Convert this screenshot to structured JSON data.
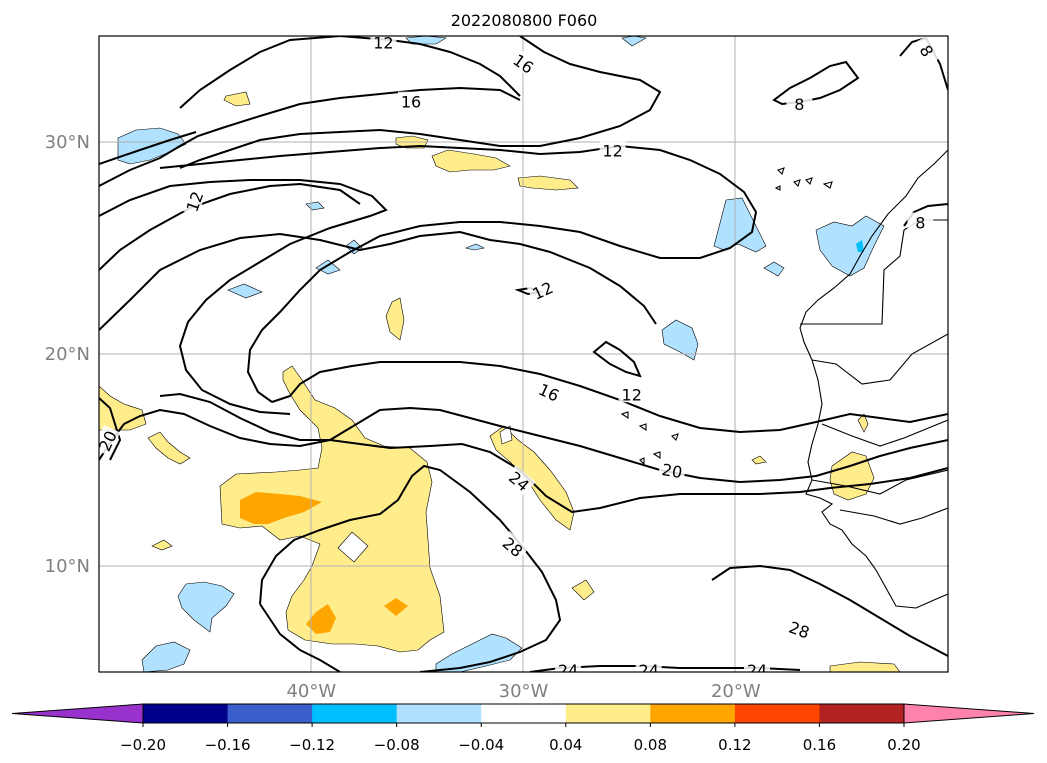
{
  "title": "2022080800 F060",
  "axes": {
    "lat_ticks": [
      {
        "lat": 30,
        "label": "30°N"
      },
      {
        "lat": 20,
        "label": "20°N"
      },
      {
        "lat": 10,
        "label": "10°N"
      }
    ],
    "lon_ticks": [
      {
        "lon": -40,
        "label": "40°W"
      },
      {
        "lon": -30,
        "label": "30°W"
      },
      {
        "lon": -20,
        "label": "20°W"
      }
    ],
    "lon_range": [
      -50,
      -10
    ],
    "lat_range": [
      5,
      35
    ],
    "grid": true,
    "tick_label_color": "#808080"
  },
  "contour_labels": [
    {
      "text": "12",
      "lon": -45.5,
      "lat": 27.2,
      "rot": -70
    },
    {
      "text": "12",
      "lon": -36.6,
      "lat": 34.7,
      "rot": 0
    },
    {
      "text": "16",
      "lon": -30.0,
      "lat": 33.7,
      "rot": 35
    },
    {
      "text": "16",
      "lon": -35.3,
      "lat": 31.9,
      "rot": 0
    },
    {
      "text": "12",
      "lon": -25.8,
      "lat": 29.6,
      "rot": 0
    },
    {
      "text": "12",
      "lon": -29.1,
      "lat": 23.0,
      "rot": -25
    },
    {
      "text": "16",
      "lon": -28.8,
      "lat": 18.2,
      "rot": 25
    },
    {
      "text": "12",
      "lon": -24.9,
      "lat": 18.1,
      "rot": 0
    },
    {
      "text": "20",
      "lon": -49.6,
      "lat": 15.9,
      "rot": -65
    },
    {
      "text": "20",
      "lon": -23.0,
      "lat": 14.5,
      "rot": 10
    },
    {
      "text": "24",
      "lon": -30.2,
      "lat": 14.0,
      "rot": 40
    },
    {
      "text": "28",
      "lon": -30.5,
      "lat": 10.9,
      "rot": 40
    },
    {
      "text": "28",
      "lon": -17.0,
      "lat": 7.0,
      "rot": 20
    },
    {
      "text": "24",
      "lon": -27.9,
      "lat": 5.1,
      "rot": 0
    },
    {
      "text": "24",
      "lon": -24.1,
      "lat": 5.1,
      "rot": 0
    },
    {
      "text": "24",
      "lon": -19.0,
      "lat": 5.1,
      "rot": 0
    },
    {
      "text": "8",
      "lon": -11.0,
      "lat": 34.3,
      "rot": 60
    },
    {
      "text": "8",
      "lon": -17.0,
      "lat": 31.8,
      "rot": 0
    },
    {
      "text": "8",
      "lon": -11.3,
      "lat": 26.2,
      "rot": 0
    }
  ],
  "colorbar": {
    "colors": [
      "#9932cc",
      "#00008b",
      "#3a5fcd",
      "#00bfff",
      "#b0e2ff",
      "#ffffff",
      "#ffec8b",
      "#ffa500",
      "#ff4500",
      "#b22222",
      "#ff82ab"
    ],
    "tick_labels": [
      "−0.20",
      "−0.16",
      "−0.12",
      "−0.08",
      "−0.04",
      "0.04",
      "0.08",
      "0.12",
      "0.16",
      "0.20"
    ]
  }
}
